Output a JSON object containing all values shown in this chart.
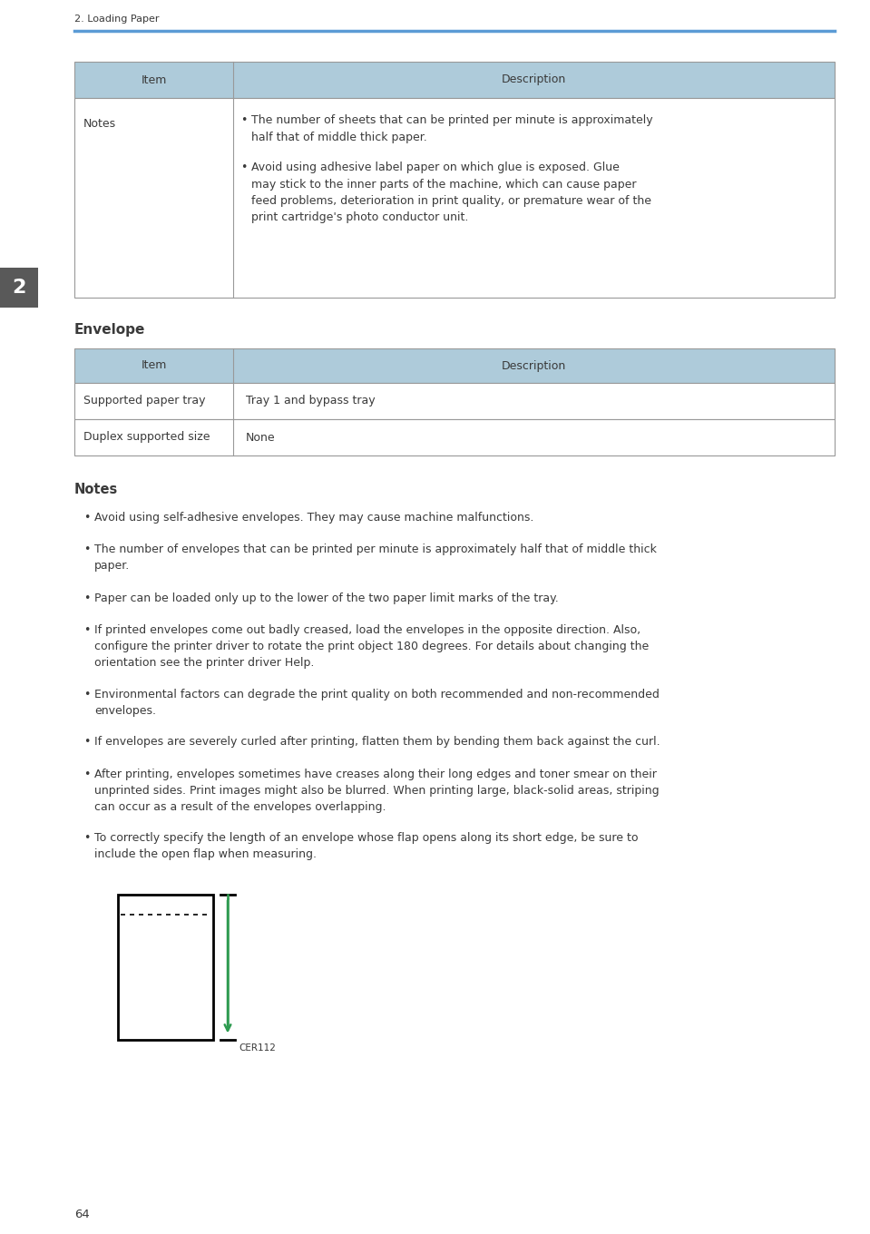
{
  "page_bg": "#ffffff",
  "header_text": "2. Loading Paper",
  "header_line_color": "#5b9bd5",
  "chapter_tab_bg": "#595959",
  "chapter_tab_text": "2",
  "chapter_tab_color": "#ffffff",
  "table_header_bg": "#aecbda",
  "table_border_color": "#999999",
  "table1_header": [
    "Item",
    "Description"
  ],
  "table1_notes_bullet1": "The number of sheets that can be printed per minute is approximately\nhalf that of middle thick paper.",
  "table1_notes_bullet2": "Avoid using adhesive label paper on which glue is exposed. Glue\nmay stick to the inner parts of the machine, which can cause paper\nfeed problems, deterioration in print quality, or premature wear of the\nprint cartridge's photo conductor unit.",
  "envelope_title": "Envelope",
  "table2_header": [
    "Item",
    "Description"
  ],
  "table2_rows": [
    [
      "Supported paper tray",
      "Tray 1 and bypass tray"
    ],
    [
      "Duplex supported size",
      "None"
    ]
  ],
  "notes_title": "Notes",
  "notes_bullets": [
    "Avoid using self-adhesive envelopes. They may cause machine malfunctions.",
    "The number of envelopes that can be printed per minute is approximately half that of middle thick\npaper.",
    "Paper can be loaded only up to the lower of the two paper limit marks of the tray.",
    "If printed envelopes come out badly creased, load the envelopes in the opposite direction. Also,\nconfigure the printer driver to rotate the print object 180 degrees. For details about changing the\norientation see the printer driver Help.",
    "Environmental factors can degrade the print quality on both recommended and non-recommended\nenvelopes.",
    "If envelopes are severely curled after printing, flatten them by bending them back against the curl.",
    "After printing, envelopes sometimes have creases along their long edges and toner smear on their\nunprinted sides. Print images might also be blurred. When printing large, black-solid areas, striping\ncan occur as a result of the envelopes overlapping.",
    "To correctly specify the length of an envelope whose flap opens along its short edge, be sure to\ninclude the open flap when measuring."
  ],
  "arrow_color": "#2e9b50",
  "cer_label": "CER112",
  "footer_text": "64",
  "text_color": "#3a3a3a",
  "body_fontsize": 9.0,
  "table_fontsize": 9.0,
  "small_fontsize": 7.5
}
